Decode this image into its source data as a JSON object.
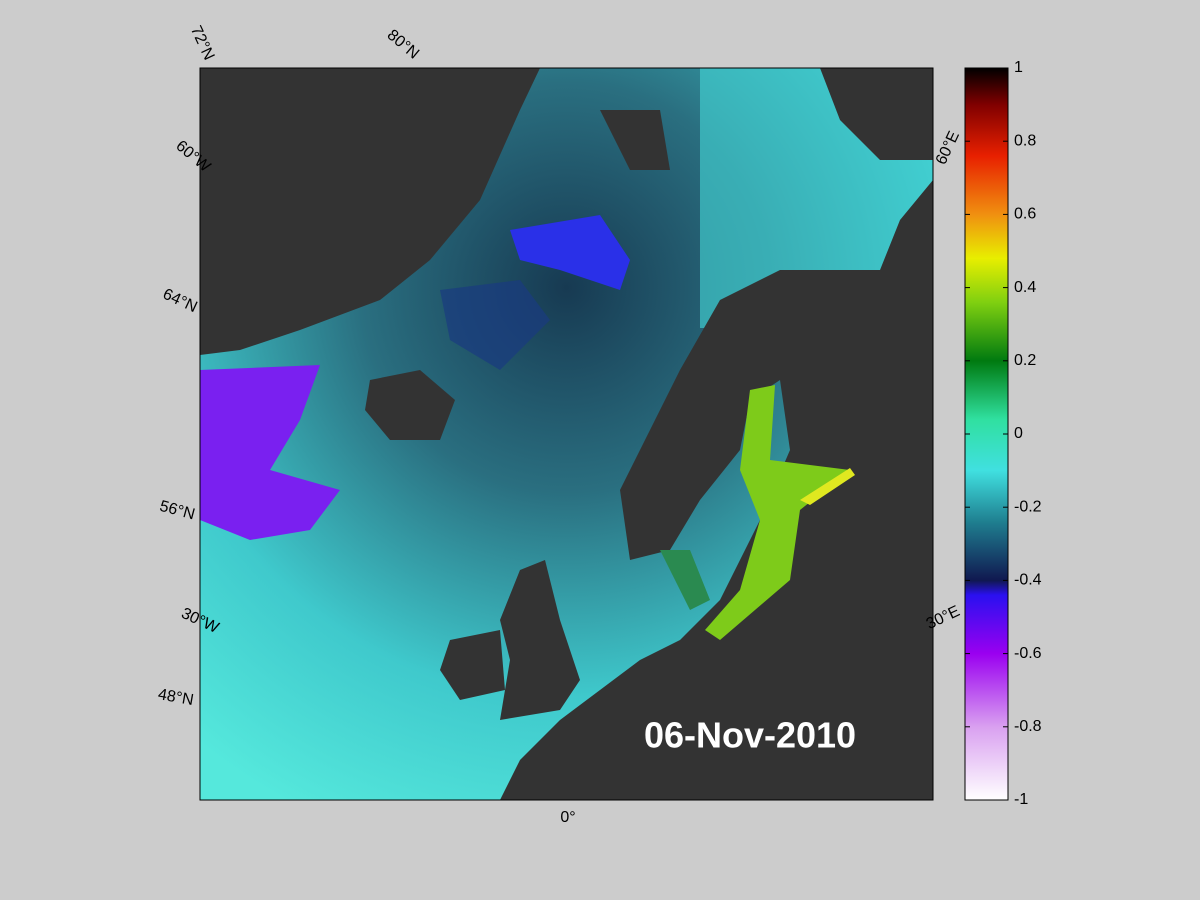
{
  "map": {
    "date": "06-Nov-2010",
    "graticule_labels": [
      "72°N",
      "80°N",
      "60°W",
      "64°N",
      "56°N",
      "30°W",
      "48°N",
      "0°",
      "30°E",
      "60°E"
    ]
  },
  "colorbar": {
    "range": [
      -1,
      1
    ],
    "ticks": [
      -1,
      -0.8,
      -0.6,
      -0.4,
      -0.2,
      0,
      0.2,
      0.4,
      0.6,
      0.8,
      1
    ]
  }
}
